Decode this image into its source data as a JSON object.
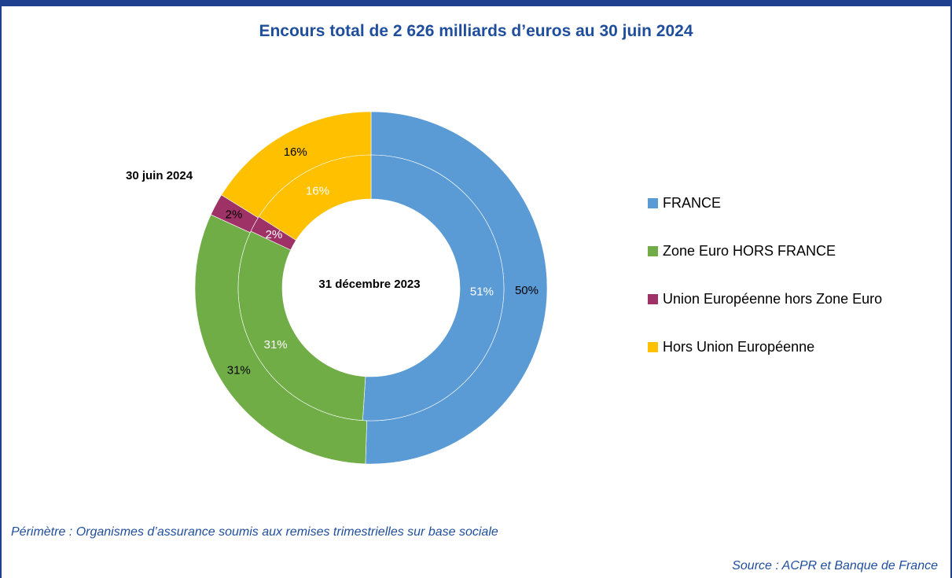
{
  "title": "Encours total de 2 626 milliards d’euros au 30 juin 2024",
  "chart_data": {
    "type": "pie",
    "subtype": "double-donut",
    "categories": [
      "FRANCE",
      "Zone Euro HORS FRANCE",
      "Union Européenne hors Zone Euro",
      "Hors Union Européenne"
    ],
    "colors": [
      "#5b9bd5",
      "#70ad47",
      "#9e3266",
      "#ffc000"
    ],
    "series": [
      {
        "name": "30 juin 2024",
        "ring": "outer",
        "values": [
          50,
          31,
          2,
          16
        ],
        "labels": [
          "50%",
          "31%",
          "2%",
          "16%"
        ]
      },
      {
        "name": "31 décembre 2023",
        "ring": "inner",
        "values": [
          51,
          31,
          2,
          16
        ],
        "labels": [
          "51%",
          "31%",
          "2%",
          "16%"
        ]
      }
    ],
    "legend": "right"
  },
  "footnote": "Périmètre : Organismes d’assurance soumis aux remises trimestrielles sur base sociale",
  "source": "Source : ACPR et Banque de France"
}
